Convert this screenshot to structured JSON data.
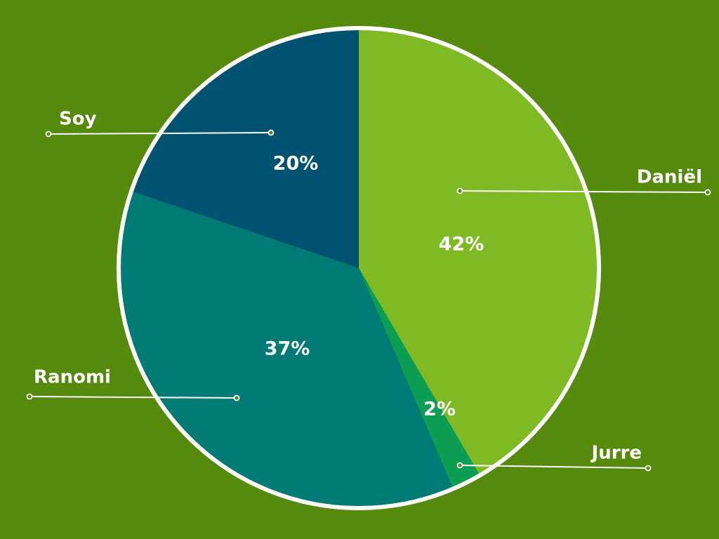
{
  "colors": {
    "background": "#568a0d",
    "outline": "#ffffff",
    "leader": "#ffffff"
  },
  "chart_data": {
    "type": "pie",
    "title": "",
    "start_angle_deg": 0,
    "direction": "clockwise",
    "slices": [
      {
        "label": "Daniël",
        "value": 42,
        "display": "42%",
        "color": "#7fba25"
      },
      {
        "label": "Jurre",
        "value": 2,
        "display": "2%",
        "color": "#0c9e52"
      },
      {
        "label": "Ranomi",
        "value": 37,
        "display": "37%",
        "color": "#007a74"
      },
      {
        "label": "Soy",
        "value": 20,
        "display": "20%",
        "color": "#005270"
      }
    ]
  }
}
